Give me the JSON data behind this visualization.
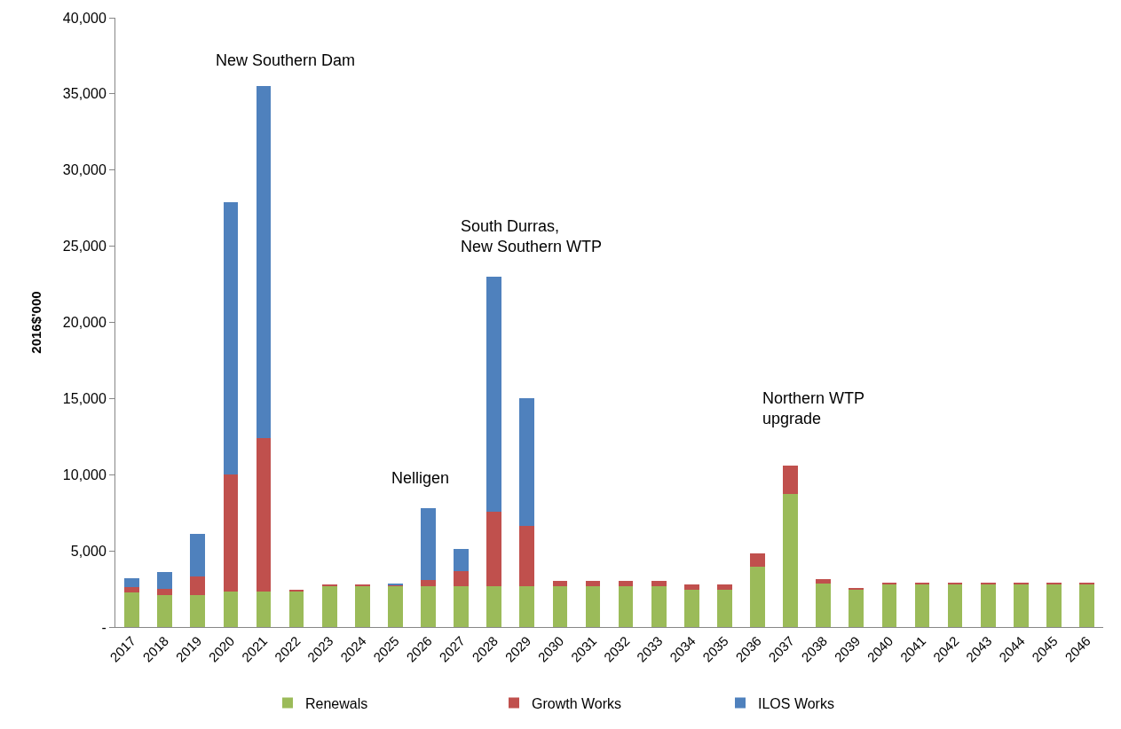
{
  "chart_data": {
    "type": "bar",
    "stacked": true,
    "ylabel": "2016$'000",
    "categories": [
      "2017",
      "2018",
      "2019",
      "2020",
      "2021",
      "2022",
      "2023",
      "2024",
      "2025",
      "2026",
      "2027",
      "2028",
      "2029",
      "2030",
      "2031",
      "2032",
      "2033",
      "2034",
      "2035",
      "2036",
      "2037",
      "2038",
      "2039",
      "2040",
      "2041",
      "2042",
      "2043",
      "2044",
      "2045",
      "2046"
    ],
    "series": [
      {
        "name": "Renewals",
        "color": "#9bbb59",
        "values": [
          2250,
          2100,
          2100,
          2350,
          2350,
          2350,
          2650,
          2650,
          2650,
          2650,
          2650,
          2650,
          2650,
          2650,
          2650,
          2650,
          2650,
          2420,
          2420,
          3980,
          8750,
          2880,
          2420,
          2830,
          2830,
          2830,
          2830,
          2830,
          2830,
          2830
        ]
      },
      {
        "name": "Growth Works",
        "color": "#c0504d",
        "values": [
          380,
          400,
          1200,
          7650,
          10050,
          100,
          120,
          120,
          120,
          430,
          1000,
          4900,
          4000,
          390,
          390,
          390,
          390,
          370,
          370,
          830,
          1850,
          290,
          120,
          110,
          110,
          110,
          110,
          110,
          110,
          110
        ]
      },
      {
        "name": "ILOS Works",
        "color": "#4f81bd",
        "values": [
          600,
          1100,
          2800,
          17900,
          23100,
          0,
          0,
          0,
          110,
          4700,
          1480,
          15450,
          8400,
          0,
          0,
          0,
          0,
          0,
          0,
          0,
          0,
          0,
          0,
          0,
          0,
          0,
          0,
          0,
          0,
          0
        ]
      }
    ],
    "ylim": [
      0,
      40000
    ],
    "yticks": [
      {
        "value": 0,
        "label": "-"
      },
      {
        "value": 5000,
        "label": "5,000"
      },
      {
        "value": 10000,
        "label": "10,000"
      },
      {
        "value": 15000,
        "label": "15,000"
      },
      {
        "value": 20000,
        "label": "20,000"
      },
      {
        "value": 25000,
        "label": "25,000"
      },
      {
        "value": 30000,
        "label": "30,000"
      },
      {
        "value": 35000,
        "label": "35,000"
      },
      {
        "value": 40000,
        "label": "40,000"
      }
    ],
    "annotations": [
      "New Southern Dam",
      "Nelligen",
      "South Durras,\nNew Southern WTP",
      "Northern WTP\nupgrade"
    ],
    "legend": "bottom"
  }
}
